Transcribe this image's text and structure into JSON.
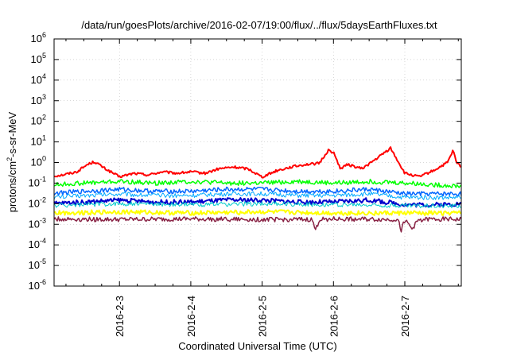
{
  "chart_data": {
    "type": "line",
    "title": "/data/run/goesPlots/archive/2016-02-07/19:00/flux/../flux/5daysEarthFluxes.txt",
    "xlabel": "Coordinated Universal Time (UTC)",
    "ylabel": {
      "base": "protons/cm",
      "sup": "2",
      "rest": "-s-sr-MeV"
    },
    "y_scale": "log",
    "ylim": [
      1e-06,
      1000000.0
    ],
    "y_ticks": [
      {
        "exp": "-6"
      },
      {
        "exp": "-5"
      },
      {
        "exp": "-4"
      },
      {
        "exp": "-3"
      },
      {
        "exp": "-2"
      },
      {
        "exp": "-1"
      },
      {
        "exp": "0"
      },
      {
        "exp": "1"
      },
      {
        "exp": "2"
      },
      {
        "exp": "3"
      },
      {
        "exp": "4"
      },
      {
        "exp": "5"
      },
      {
        "exp": "6"
      }
    ],
    "xlim": [
      "2016-02-02 02:00",
      "2016-02-07 19:00"
    ],
    "x_ticks": [
      {
        "label": "2016-2-3",
        "day": 1
      },
      {
        "label": "2016-2-4",
        "day": 2
      },
      {
        "label": "2016-2-5",
        "day": 3
      },
      {
        "label": "2016-2-6",
        "day": 4
      },
      {
        "label": "2016-2-7",
        "day": 5
      }
    ],
    "grid": true,
    "series": [
      {
        "color": "#ff0000",
        "width": 2,
        "points": [
          [
            0.0,
            0.2
          ],
          [
            0.2,
            0.25
          ],
          [
            0.4,
            0.35
          ],
          [
            0.55,
            0.8
          ],
          [
            0.65,
            1.1
          ],
          [
            0.8,
            0.5
          ],
          [
            1.0,
            0.2
          ],
          [
            1.2,
            0.3
          ],
          [
            1.4,
            0.25
          ],
          [
            1.6,
            0.35
          ],
          [
            1.8,
            0.3
          ],
          [
            2.0,
            0.35
          ],
          [
            2.2,
            0.3
          ],
          [
            2.4,
            0.5
          ],
          [
            2.6,
            0.6
          ],
          [
            2.8,
            0.5
          ],
          [
            3.0,
            0.2
          ],
          [
            3.2,
            0.4
          ],
          [
            3.4,
            0.6
          ],
          [
            3.6,
            0.8
          ],
          [
            3.8,
            0.9
          ],
          [
            3.93,
            4.0
          ],
          [
            4.0,
            3.0
          ],
          [
            4.1,
            0.5
          ],
          [
            4.2,
            0.8
          ],
          [
            4.4,
            0.5
          ],
          [
            4.6,
            1.5
          ],
          [
            4.8,
            5.0
          ],
          [
            5.0,
            0.3
          ],
          [
            5.2,
            0.2
          ],
          [
            5.4,
            0.4
          ],
          [
            5.6,
            1.0
          ],
          [
            5.68,
            4.0
          ],
          [
            5.72,
            1.0
          ],
          [
            5.8,
            0.6
          ]
        ]
      },
      {
        "color": "#00ff00",
        "width": 1.5,
        "points": [
          [
            0.0,
            0.08
          ],
          [
            0.5,
            0.1
          ],
          [
            1.0,
            0.12
          ],
          [
            1.5,
            0.1
          ],
          [
            2.0,
            0.12
          ],
          [
            2.5,
            0.1
          ],
          [
            3.0,
            0.1
          ],
          [
            3.5,
            0.12
          ],
          [
            4.0,
            0.1
          ],
          [
            4.5,
            0.12
          ],
          [
            5.0,
            0.1
          ],
          [
            5.5,
            0.08
          ],
          [
            5.8,
            0.07
          ]
        ]
      },
      {
        "color": "#0066ff",
        "width": 1.5,
        "points": [
          [
            0.0,
            0.03
          ],
          [
            0.5,
            0.04
          ],
          [
            1.0,
            0.05
          ],
          [
            1.5,
            0.04
          ],
          [
            2.0,
            0.04
          ],
          [
            2.5,
            0.05
          ],
          [
            3.0,
            0.05
          ],
          [
            3.5,
            0.04
          ],
          [
            4.0,
            0.04
          ],
          [
            4.5,
            0.05
          ],
          [
            5.0,
            0.03
          ],
          [
            5.5,
            0.03
          ],
          [
            5.8,
            0.03
          ]
        ]
      },
      {
        "color": "#00aaff",
        "width": 1,
        "points": [
          [
            0.0,
            0.02
          ],
          [
            0.5,
            0.025
          ],
          [
            1.0,
            0.03
          ],
          [
            1.5,
            0.025
          ],
          [
            2.0,
            0.025
          ],
          [
            2.5,
            0.03
          ],
          [
            3.0,
            0.03
          ],
          [
            3.5,
            0.025
          ],
          [
            4.0,
            0.025
          ],
          [
            4.5,
            0.03
          ],
          [
            5.0,
            0.02
          ],
          [
            5.5,
            0.02
          ],
          [
            5.8,
            0.02
          ]
        ]
      },
      {
        "color": "#0000cc",
        "width": 2,
        "points": [
          [
            0.0,
            0.01
          ],
          [
            0.5,
            0.012
          ],
          [
            1.0,
            0.015
          ],
          [
            1.5,
            0.012
          ],
          [
            2.0,
            0.012
          ],
          [
            2.5,
            0.015
          ],
          [
            3.0,
            0.015
          ],
          [
            3.5,
            0.012
          ],
          [
            4.0,
            0.012
          ],
          [
            4.5,
            0.015
          ],
          [
            5.0,
            0.009
          ],
          [
            5.5,
            0.009
          ],
          [
            5.8,
            0.01
          ]
        ]
      },
      {
        "color": "#00cccc",
        "width": 1,
        "points": [
          [
            0.0,
            0.008
          ],
          [
            1.0,
            0.01
          ],
          [
            2.0,
            0.009
          ],
          [
            3.0,
            0.01
          ],
          [
            4.0,
            0.009
          ],
          [
            5.0,
            0.008
          ],
          [
            5.8,
            0.008
          ]
        ]
      },
      {
        "color": "#ffff00",
        "width": 2,
        "points": [
          [
            0.0,
            0.0035
          ],
          [
            1.0,
            0.004
          ],
          [
            2.0,
            0.0035
          ],
          [
            3.0,
            0.004
          ],
          [
            4.0,
            0.0035
          ],
          [
            5.0,
            0.0035
          ],
          [
            5.8,
            0.0035
          ]
        ]
      },
      {
        "color": "#882244",
        "width": 1.5,
        "points": [
          [
            0.0,
            0.0018
          ],
          [
            1.0,
            0.0017
          ],
          [
            2.0,
            0.0018
          ],
          [
            3.0,
            0.0017
          ],
          [
            3.7,
            0.0017
          ],
          [
            3.75,
            0.0005
          ],
          [
            3.8,
            0.0017
          ],
          [
            4.0,
            0.0018
          ],
          [
            4.9,
            0.0017
          ],
          [
            4.95,
            0.0005
          ],
          [
            5.0,
            0.0017
          ],
          [
            5.1,
            0.0006
          ],
          [
            5.2,
            0.0017
          ],
          [
            5.5,
            0.0018
          ],
          [
            5.8,
            0.0017
          ]
        ]
      }
    ]
  }
}
